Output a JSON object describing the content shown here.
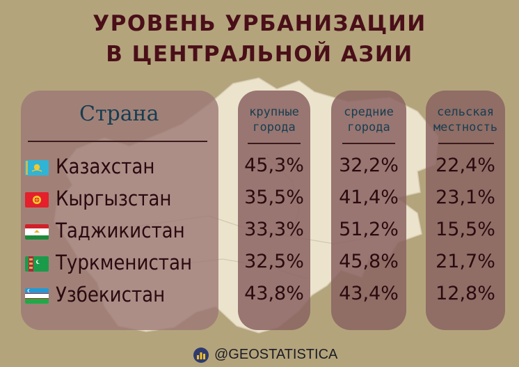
{
  "title": {
    "line1": "УРОВЕНЬ УРБАНИЗАЦИИ",
    "line2": "В ЦЕНТРАЛЬНОЙ АЗИИ"
  },
  "headers": {
    "country": "Страна",
    "large_line1": "крупные",
    "large_line2": "города",
    "medium_line1": "средние",
    "medium_line2": "города",
    "rural_line1": "сельская",
    "rural_line2": "местность"
  },
  "rows": [
    {
      "country": "Казахстан",
      "flag": "kazakhstan-flag-icon",
      "large": "45,3%",
      "medium": "32,2%",
      "rural": "22,4%"
    },
    {
      "country": "Кыргызстан",
      "flag": "kyrgyzstan-flag-icon",
      "large": "35,5%",
      "medium": "41,4%",
      "rural": "23,1%"
    },
    {
      "country": "Таджикистан",
      "flag": "tajikistan-flag-icon",
      "large": "33,3%",
      "medium": "51,2%",
      "rural": "15,5%"
    },
    {
      "country": "Туркменистан",
      "flag": "turkmenistan-flag-icon",
      "large": "32,5%",
      "medium": "45,8%",
      "rural": "21,7%"
    },
    {
      "country": "Узбекистан",
      "flag": "uzbekistan-flag-icon",
      "large": "43,8%",
      "medium": "43,4%",
      "rural": "12,8%"
    }
  ],
  "footer": {
    "handle": "@GEOSTATISTICA",
    "icon": "bar-chart-logo-icon"
  },
  "colors": {
    "background": "#b3a47c",
    "title": "#4a0f19",
    "header_text": "#163d52",
    "panel": "#8a6462",
    "map": "#ede4cf"
  }
}
